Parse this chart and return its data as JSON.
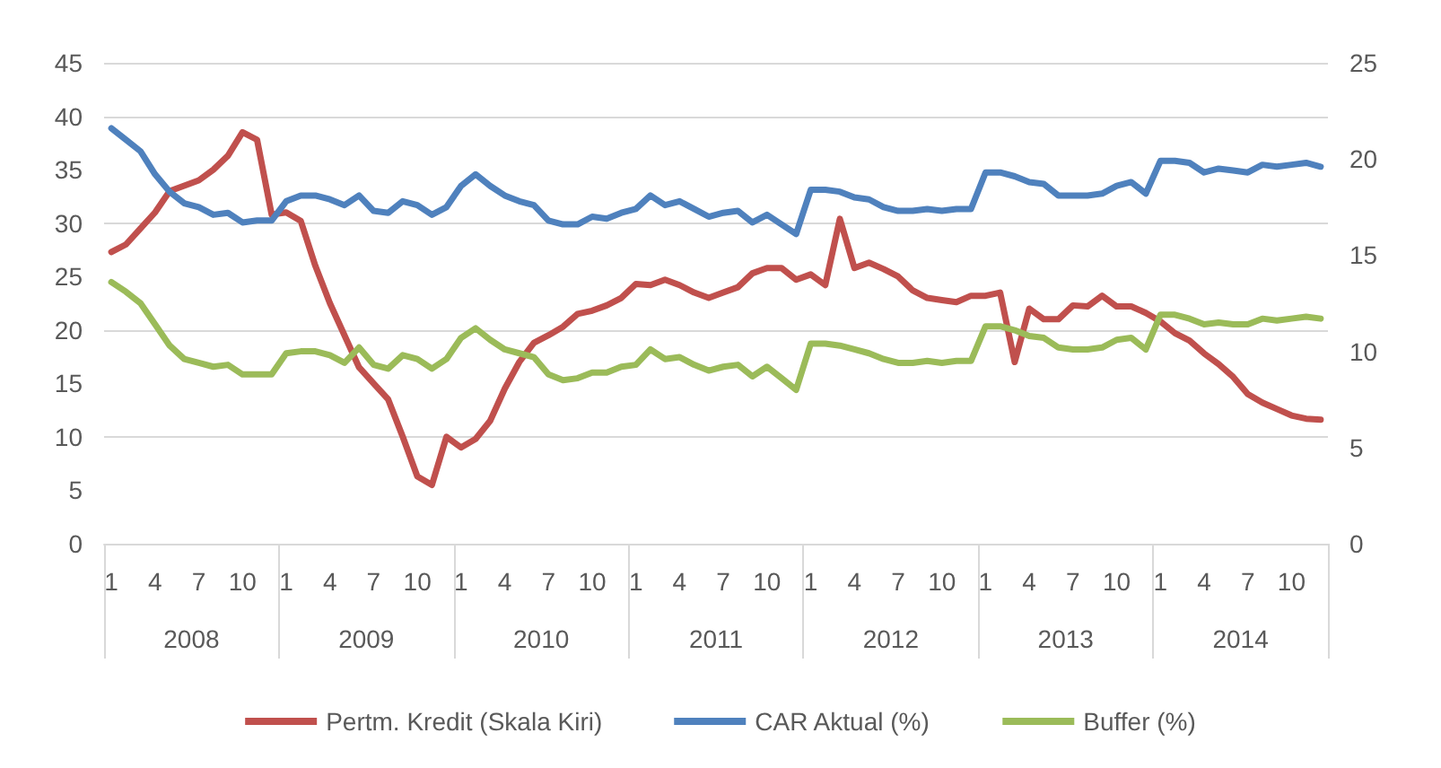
{
  "chart_data": {
    "type": "line",
    "categories": [
      "1",
      null,
      null,
      "4",
      null,
      null,
      "7",
      null,
      null,
      "10",
      null,
      null,
      "1",
      null,
      null,
      "4",
      null,
      null,
      "7",
      null,
      null,
      "10",
      null,
      null,
      "1",
      null,
      null,
      "4",
      null,
      null,
      "7",
      null,
      null,
      "10",
      null,
      null,
      "1",
      null,
      null,
      "4",
      null,
      null,
      "7",
      null,
      null,
      "10",
      null,
      null,
      "1",
      null,
      null,
      "4",
      null,
      null,
      "7",
      null,
      null,
      "10",
      null,
      null,
      "1",
      null,
      null,
      "4",
      null,
      null,
      "7",
      null,
      null,
      "10",
      null,
      null,
      "1",
      null,
      null,
      "4",
      null,
      null,
      "7",
      null,
      null,
      "10",
      null,
      null
    ],
    "annotations": [
      "2008",
      "2009",
      "2010",
      "2011",
      "2012",
      "2013",
      "2014"
    ],
    "series": [
      {
        "name": "Pertm. Kredit (Skala Kiri)",
        "color": "#c0504d",
        "values": [
          27.3,
          28,
          29.5,
          31,
          33,
          33.5,
          34,
          35,
          36.3,
          38.5,
          37.8,
          30.8,
          31,
          30.2,
          26,
          22.5,
          19.5,
          16.5,
          15,
          13.5,
          10,
          6.3,
          5.5,
          10,
          9,
          9.8,
          11.5,
          14.5,
          17,
          18.8,
          19.5,
          20.3,
          21.5,
          21.8,
          22.3,
          23,
          24.3,
          24.2,
          24.7,
          24.2,
          23.5,
          23,
          23.5,
          24,
          25.3,
          25.8,
          25.8,
          24.7,
          25.2,
          24.2,
          30.4,
          25.8,
          26.3,
          25.7,
          25,
          23.7,
          23,
          22.8,
          22.6,
          23.2,
          23.2,
          23.5,
          17,
          22,
          21,
          21,
          22.3,
          22.2,
          23.2,
          22.2,
          22.2,
          21.6,
          20.8,
          19.7,
          19,
          17.8,
          16.8,
          15.6,
          14,
          13.2,
          12.6,
          12,
          11.7,
          11.6
        ]
      },
      {
        "name": "CAR Aktual (%)",
        "color": "#4f81bd",
        "axis": "y2",
        "values": [
          21.6,
          21.0,
          20.4,
          19.2,
          18.3,
          17.7,
          17.5,
          17.1,
          17.2,
          16.7,
          16.8,
          16.8,
          17.8,
          18.1,
          18.1,
          17.9,
          17.6,
          18.1,
          17.3,
          17.2,
          17.8,
          17.6,
          17.1,
          17.5,
          18.6,
          19.2,
          18.6,
          18.1,
          17.8,
          17.6,
          16.8,
          16.6,
          16.6,
          17.0,
          16.9,
          17.2,
          17.4,
          18.1,
          17.6,
          17.8,
          17.4,
          17.0,
          17.2,
          17.3,
          16.7,
          17.1,
          16.6,
          16.1,
          18.4,
          18.4,
          18.3,
          18.0,
          17.9,
          17.5,
          17.3,
          17.3,
          17.4,
          17.3,
          17.4,
          17.4,
          19.3,
          19.3,
          19.1,
          18.8,
          18.7,
          18.1,
          18.1,
          18.1,
          18.2,
          18.6,
          18.8,
          18.2,
          19.9,
          19.9,
          19.8,
          19.3,
          19.5,
          19.4,
          19.3,
          19.7,
          19.6,
          19.7,
          19.8,
          19.6
        ]
      },
      {
        "name": "Buffer (%)",
        "color": "#9bbb59",
        "axis": "y2",
        "values": [
          13.6,
          13.1,
          12.5,
          11.4,
          10.3,
          9.6,
          9.4,
          9.2,
          9.3,
          8.8,
          8.8,
          8.8,
          9.9,
          10.0,
          10.0,
          9.8,
          9.4,
          10.2,
          9.3,
          9.1,
          9.8,
          9.6,
          9.1,
          9.6,
          10.7,
          11.2,
          10.6,
          10.1,
          9.9,
          9.7,
          8.8,
          8.5,
          8.6,
          8.9,
          8.9,
          9.2,
          9.3,
          10.1,
          9.6,
          9.7,
          9.3,
          9.0,
          9.2,
          9.3,
          8.7,
          9.2,
          8.6,
          8.0,
          10.4,
          10.4,
          10.3,
          10.1,
          9.9,
          9.6,
          9.4,
          9.4,
          9.5,
          9.4,
          9.5,
          9.5,
          11.3,
          11.3,
          11.1,
          10.8,
          10.7,
          10.2,
          10.1,
          10.1,
          10.2,
          10.6,
          10.7,
          10.1,
          11.9,
          11.9,
          11.7,
          11.4,
          11.5,
          11.4,
          11.4,
          11.7,
          11.6,
          11.7,
          11.8,
          11.7
        ]
      }
    ],
    "ylim": [
      0,
      45
    ],
    "yticks": [
      0,
      5,
      10,
      15,
      20,
      25,
      30,
      35,
      40,
      45
    ],
    "y2lim": [
      0,
      25
    ],
    "y2ticks": [
      0,
      5,
      10,
      15,
      20,
      25
    ],
    "grid": "y",
    "legend": "bottom",
    "marker": "none",
    "line_style": "solid"
  }
}
